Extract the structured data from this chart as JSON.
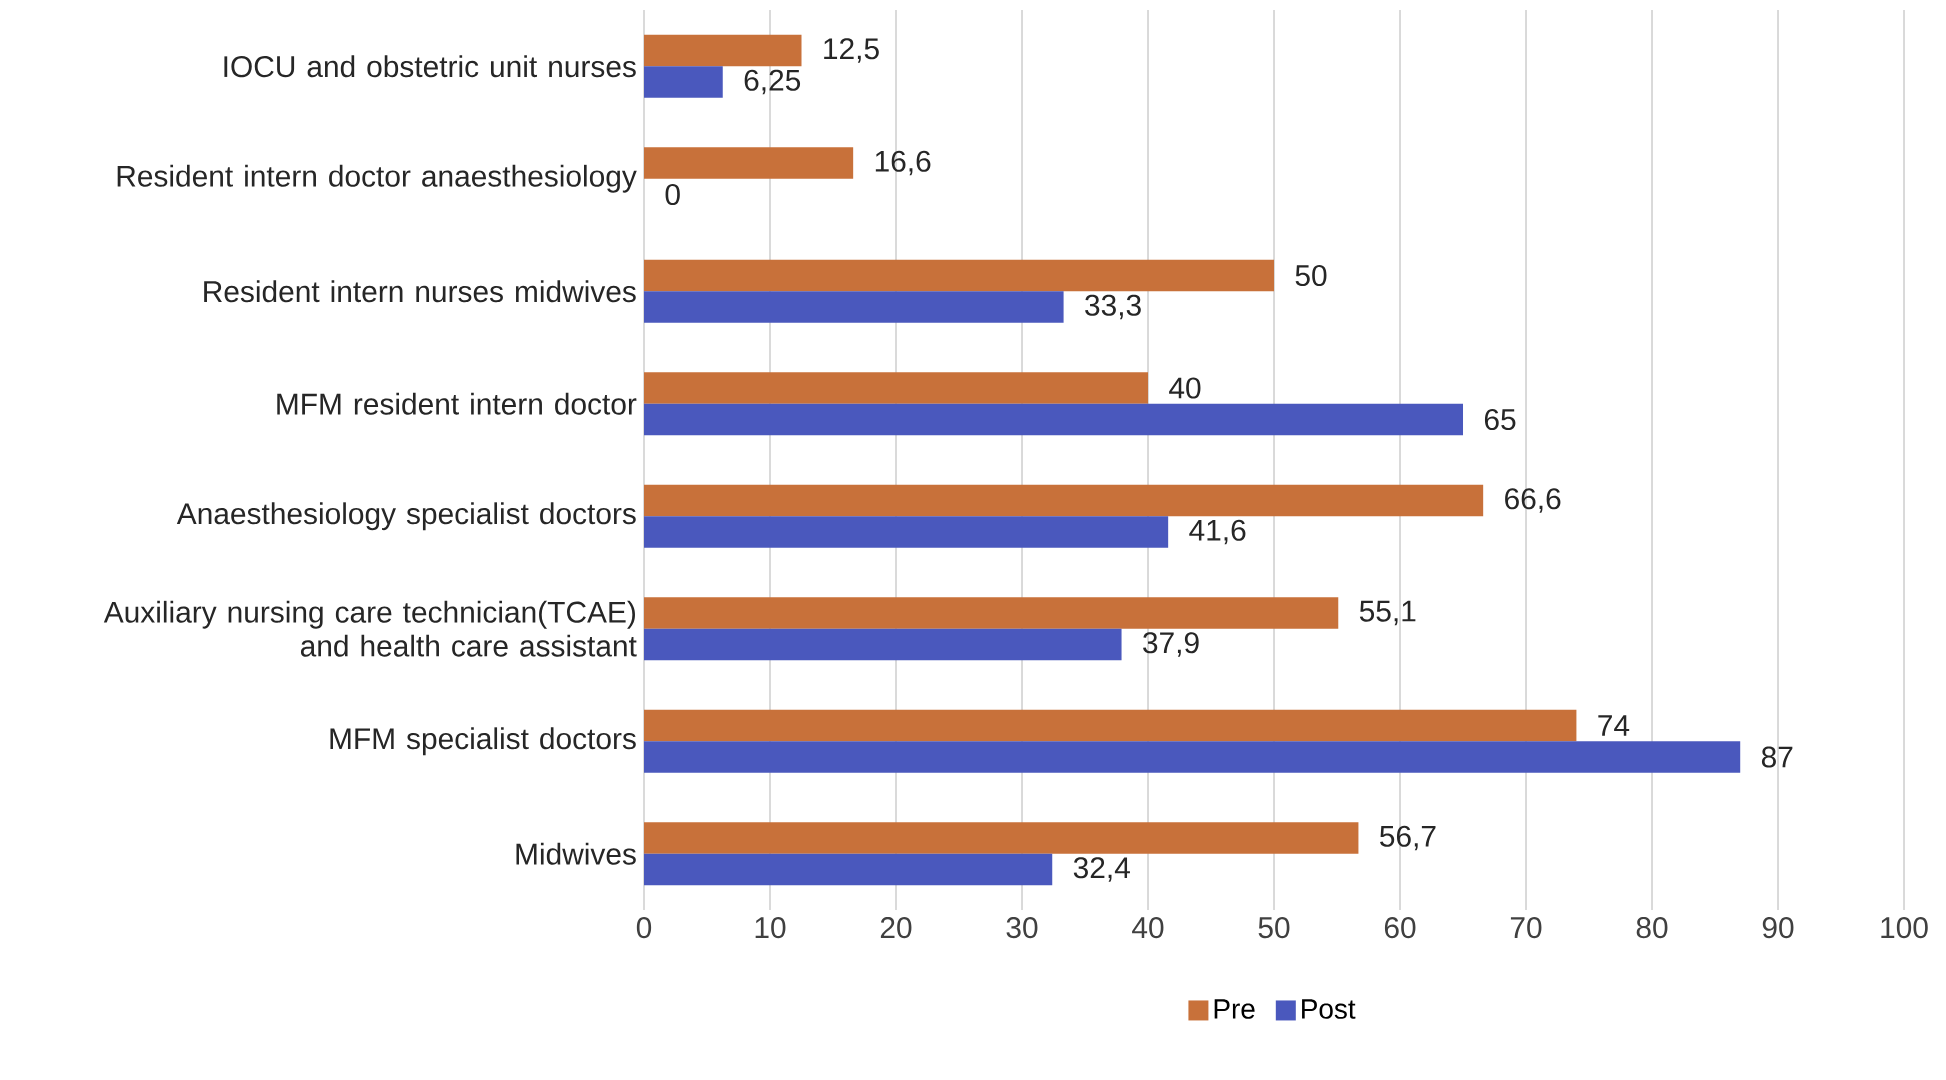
{
  "chart_data": {
    "type": "bar",
    "orientation": "horizontal",
    "categories": [
      "IOCU and obstetric unit nurses",
      "Resident intern doctor anaesthesiology",
      "Resident intern nurses midwives",
      "MFM resident intern doctor",
      "Anaesthesiology specialist doctors",
      "Auxiliary nursing care technician(TCAE) and health care assistant",
      "MFM specialist doctors",
      "Midwives"
    ],
    "series": [
      {
        "name": "Pre",
        "color": "#c8713a",
        "values": [
          12.5,
          16.6,
          50,
          40,
          66.6,
          55.1,
          74,
          56.7
        ],
        "value_labels": [
          "12,5",
          "16,6",
          "50",
          "40",
          "66,6",
          "55,1",
          "74",
          "56,7"
        ]
      },
      {
        "name": "Post",
        "color": "#4a58bd",
        "values": [
          6.25,
          0,
          33.3,
          65,
          41.6,
          37.9,
          87,
          32.4
        ],
        "value_labels": [
          "6,25",
          "0",
          "33,3",
          "65",
          "41,6",
          "37,9",
          "87",
          "32,4"
        ]
      }
    ],
    "xlim": [
      0,
      100
    ],
    "xticks": [
      0,
      10,
      20,
      30,
      40,
      50,
      60,
      70,
      80,
      90,
      100
    ],
    "grid": "x",
    "legend": "bottom"
  }
}
